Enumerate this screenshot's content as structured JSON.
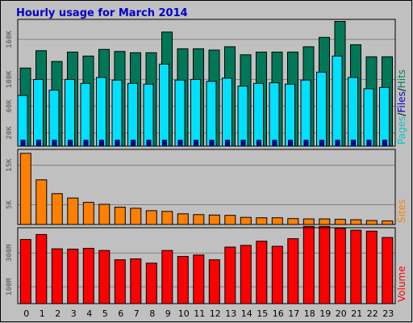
{
  "chart_data": {
    "type": "bar",
    "title": "Hourly usage for March 2014",
    "categories": [
      "0",
      "1",
      "2",
      "3",
      "4",
      "5",
      "6",
      "7",
      "8",
      "9",
      "10",
      "11",
      "12",
      "13",
      "14",
      "15",
      "16",
      "17",
      "18",
      "19",
      "20",
      "21",
      "22",
      "23"
    ],
    "panels": [
      {
        "id": "traffic",
        "ylim": [
          0,
          190000
        ],
        "yticks": [
          20000,
          60000,
          100000,
          160000
        ],
        "ytick_labels": [
          "20K",
          "60K",
          "100K",
          "160K"
        ],
        "side_label_parts": [
          {
            "text": "Pages",
            "color": "#00c8c8"
          },
          {
            "text": "/",
            "color": "#000000"
          },
          {
            "text": "Files",
            "color": "#0000cc"
          },
          {
            "text": "/",
            "color": "#000000"
          },
          {
            "text": "Hits",
            "color": "#008060"
          }
        ],
        "series": [
          {
            "name": "Hits",
            "color": "#007858",
            "values": [
              117000,
              143000,
              127000,
              141000,
              135000,
              145000,
              142000,
              140000,
              140000,
              171000,
              146000,
              146000,
              144000,
              149000,
              137000,
              141000,
              141000,
              141000,
              149000,
              163000,
              187000,
              152000,
              134000,
              134000
            ]
          },
          {
            "name": "Files",
            "color": "#00e0ff",
            "values": [
              76000,
              100000,
              84000,
              100000,
              94000,
              103000,
              99000,
              94000,
              93000,
              123000,
              99000,
              100000,
              97000,
              102000,
              90000,
              94000,
              95000,
              93000,
              99000,
              111000,
              135000,
              103000,
              86000,
              88000
            ]
          },
          {
            "name": "Pages",
            "color": "#0000cc",
            "values": [
              9000,
              9000,
              9000,
              9000,
              9000,
              9000,
              9000,
              9000,
              9000,
              9000,
              9000,
              9000,
              9000,
              9000,
              9000,
              9000,
              9000,
              9000,
              9000,
              9000,
              9000,
              9000,
              9000,
              9000
            ]
          }
        ]
      },
      {
        "id": "sites",
        "ylim": [
          0,
          19000
        ],
        "yticks": [
          5000,
          15000
        ],
        "ytick_labels": [
          "5K",
          "15K"
        ],
        "side_label_parts": [
          {
            "text": "Sites",
            "color": "#ff8000"
          }
        ],
        "series": [
          {
            "name": "Sites",
            "color": "#ff8000",
            "values": [
              18000,
              11300,
              7800,
              6700,
              5600,
              5100,
              4400,
              4100,
              3500,
              3300,
              2700,
              2500,
              2400,
              2300,
              1800,
              1700,
              1700,
              1500,
              1400,
              1400,
              1300,
              1200,
              1000,
              900
            ]
          }
        ]
      },
      {
        "id": "volume",
        "ylim": [
          0,
          450
        ],
        "yticks": [
          100,
          300
        ],
        "ytick_labels": [
          "100M",
          "300M"
        ],
        "side_label_parts": [
          {
            "text": "Volume",
            "color": "#ff0000"
          }
        ],
        "series": [
          {
            "name": "Volume",
            "color": "#ff0000",
            "values": [
              380,
              410,
              325,
              323,
              328,
              315,
              260,
              265,
              240,
              315,
              280,
              288,
              260,
              335,
              345,
              370,
              340,
              385,
              458,
              458,
              446,
              435,
              430,
              392
            ]
          }
        ]
      }
    ]
  }
}
